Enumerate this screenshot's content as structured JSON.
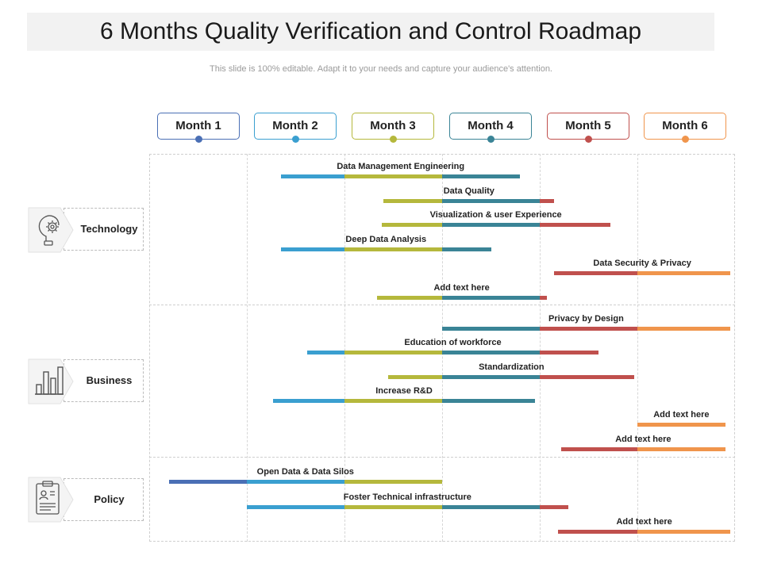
{
  "title": "6 Months Quality Verification and Control Roadmap",
  "subtitle": "This slide is 100% editable. Adapt it to your needs and capture your audience's attention.",
  "months": [
    {
      "label": "Month 1",
      "color": "#4a6fb5"
    },
    {
      "label": "Month 2",
      "color": "#3a9fd0"
    },
    {
      "label": "Month 3",
      "color": "#b5b83c"
    },
    {
      "label": "Month 4",
      "color": "#3a8496"
    },
    {
      "label": "Month 5",
      "color": "#c0504d"
    },
    {
      "label": "Month 6",
      "color": "#f0954c"
    }
  ],
  "categories": [
    {
      "label": "Technology",
      "icon": "lightbulb-gear-icon"
    },
    {
      "label": "Business",
      "icon": "bar-chart-icon"
    },
    {
      "label": "Policy",
      "icon": "clipboard-icon"
    }
  ],
  "tasks": [
    {
      "label": "Data Management Engineering",
      "category": "Technology",
      "start": 1.35,
      "end": 3.8
    },
    {
      "label": "Data Quality",
      "category": "Technology",
      "start": 2.4,
      "end": 4.15
    },
    {
      "label": "Visualization & user Experience",
      "category": "Technology",
      "start": 2.38,
      "end": 4.72
    },
    {
      "label": "Deep Data Analysis",
      "category": "Technology",
      "start": 1.35,
      "end": 3.5
    },
    {
      "label": "Data Security & Privacy",
      "category": "Technology",
      "start": 4.15,
      "end": 5.95
    },
    {
      "label": "Add  text here",
      "category": "Technology",
      "start": 2.33,
      "end": 4.07
    },
    {
      "label": "Privacy by Design",
      "category": "Business",
      "start": 3.0,
      "end": 5.95
    },
    {
      "label": "Education of workforce",
      "category": "Business",
      "start": 1.62,
      "end": 4.6
    },
    {
      "label": "Standardization",
      "category": "Business",
      "start": 2.45,
      "end": 4.97
    },
    {
      "label": "Increase R&D",
      "category": "Business",
      "start": 1.27,
      "end": 3.95
    },
    {
      "label": "Add  text here",
      "category": "Business",
      "start": 5.0,
      "end": 5.9
    },
    {
      "label": "Add  text here",
      "category": "Business",
      "start": 4.22,
      "end": 5.9
    },
    {
      "label": "Open Data & Data Silos",
      "category": "Policy",
      "start": 0.2,
      "end": 3.0
    },
    {
      "label": "Foster Technical infrastructure",
      "category": "Policy",
      "start": 1.0,
      "end": 4.29
    },
    {
      "label": "Add  text here",
      "category": "Policy",
      "start": 4.19,
      "end": 5.95
    }
  ]
}
